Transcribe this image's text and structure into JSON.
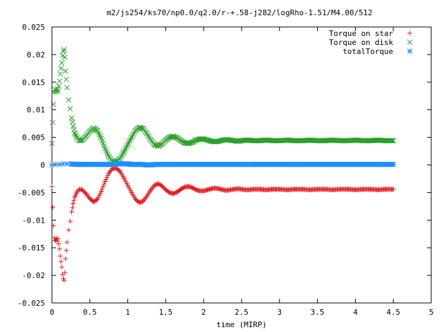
{
  "chart_data": {
    "type": "scatter",
    "title": "m2/js254/ks70/np0.0/q2.0/r-+.58-j282/logRho-1.51/M4.00/512",
    "xlabel": "time (MIRP)",
    "ylabel": "",
    "xlim": [
      0,
      5
    ],
    "ylim": [
      -0.025,
      0.025
    ],
    "x_ticks": [
      "0",
      "0.5",
      "1",
      "1.5",
      "2",
      "2.5",
      "3",
      "3.5",
      "4",
      "4.5",
      "5"
    ],
    "y_ticks": [
      "-0.025",
      "-0.02",
      "-0.015",
      "-0.01",
      "-0.005",
      "0",
      "0.005",
      "0.01",
      "0.015",
      "0.02",
      "0.025"
    ],
    "grid": false,
    "legend_position": "top-right",
    "series": [
      {
        "name": "Torque on star",
        "color": "#e41a1c",
        "marker": "plus",
        "x": [
          0.0,
          0.01,
          0.02,
          0.03,
          0.04,
          0.05,
          0.06,
          0.07,
          0.08,
          0.09,
          0.1,
          0.11,
          0.12,
          0.13,
          0.14,
          0.15,
          0.16,
          0.17,
          0.18,
          0.19,
          0.2,
          0.22,
          0.24,
          0.26,
          0.28,
          0.3,
          0.33,
          0.36,
          0.4,
          0.45,
          0.5,
          0.55,
          0.6,
          0.65,
          0.7,
          0.75,
          0.8,
          0.85,
          0.9,
          0.95,
          1.0,
          1.05,
          1.1,
          1.15,
          1.2,
          1.25,
          1.3,
          1.35,
          1.4,
          1.45,
          1.5,
          1.55,
          1.6,
          1.65,
          1.7,
          1.75,
          1.8,
          1.85,
          1.9,
          1.95,
          2.0,
          2.05,
          2.1,
          2.15,
          2.2,
          2.25,
          2.3,
          2.35,
          2.4,
          2.45,
          2.5,
          2.55,
          2.6,
          2.65,
          2.7,
          2.75,
          2.8,
          2.85,
          2.9,
          2.95,
          3.0,
          3.1,
          3.2,
          3.3,
          3.4,
          3.5,
          3.6,
          3.7,
          3.8,
          3.9,
          4.0,
          4.1,
          4.2,
          4.3,
          4.4,
          4.5
        ],
        "values": [
          -0.0039,
          -0.0077,
          -0.011,
          -0.0132,
          -0.0137,
          -0.0136,
          -0.0133,
          -0.0138,
          -0.0134,
          -0.0143,
          -0.0152,
          -0.0165,
          -0.0175,
          -0.0185,
          -0.0198,
          -0.0206,
          -0.0209,
          -0.0195,
          -0.017,
          -0.0155,
          -0.014,
          -0.0118,
          -0.0102,
          -0.0085,
          -0.007,
          -0.0058,
          -0.0049,
          -0.0044,
          -0.0045,
          -0.0052,
          -0.0061,
          -0.0067,
          -0.0062,
          -0.0048,
          -0.003,
          -0.0015,
          -0.0006,
          -0.0006,
          -0.0012,
          -0.0024,
          -0.0037,
          -0.005,
          -0.0062,
          -0.0068,
          -0.0066,
          -0.0057,
          -0.0046,
          -0.0037,
          -0.0034,
          -0.0038,
          -0.0045,
          -0.005,
          -0.0052,
          -0.0049,
          -0.0044,
          -0.004,
          -0.0039,
          -0.0041,
          -0.0045,
          -0.0047,
          -0.0047,
          -0.0045,
          -0.0043,
          -0.0042,
          -0.0043,
          -0.0045,
          -0.0046,
          -0.0045,
          -0.0044,
          -0.0043,
          -0.0044,
          -0.0045,
          -0.0045,
          -0.0044,
          -0.0044,
          -0.0044,
          -0.0045,
          -0.0045,
          -0.0044,
          -0.0044,
          -0.0044,
          -0.0045,
          -0.0044,
          -0.0044,
          -0.0045,
          -0.0044,
          -0.0044,
          -0.0045,
          -0.0044,
          -0.0044,
          -0.0045,
          -0.0044,
          -0.0044,
          -0.0045,
          -0.0044,
          -0.0044
        ]
      },
      {
        "name": "Torque on disk",
        "color": "#2ca02c",
        "marker": "cross",
        "x": [
          0.0,
          0.01,
          0.02,
          0.03,
          0.04,
          0.05,
          0.06,
          0.07,
          0.08,
          0.09,
          0.1,
          0.11,
          0.12,
          0.13,
          0.14,
          0.15,
          0.16,
          0.17,
          0.18,
          0.19,
          0.2,
          0.22,
          0.24,
          0.26,
          0.28,
          0.3,
          0.33,
          0.36,
          0.4,
          0.45,
          0.5,
          0.55,
          0.6,
          0.65,
          0.7,
          0.75,
          0.8,
          0.85,
          0.9,
          0.95,
          1.0,
          1.05,
          1.1,
          1.15,
          1.2,
          1.25,
          1.3,
          1.35,
          1.4,
          1.45,
          1.5,
          1.55,
          1.6,
          1.65,
          1.7,
          1.75,
          1.8,
          1.85,
          1.9,
          1.95,
          2.0,
          2.05,
          2.1,
          2.15,
          2.2,
          2.25,
          2.3,
          2.35,
          2.4,
          2.45,
          2.5,
          2.55,
          2.6,
          2.65,
          2.7,
          2.75,
          2.8,
          2.85,
          2.9,
          2.95,
          3.0,
          3.1,
          3.2,
          3.3,
          3.4,
          3.5,
          3.6,
          3.7,
          3.8,
          3.9,
          4.0,
          4.1,
          4.2,
          4.3,
          4.4,
          4.5
        ],
        "values": [
          0.0039,
          0.0077,
          0.011,
          0.0132,
          0.0137,
          0.0136,
          0.0133,
          0.0138,
          0.0134,
          0.0143,
          0.0152,
          0.0165,
          0.0175,
          0.0185,
          0.0198,
          0.0206,
          0.0209,
          0.0195,
          0.017,
          0.0155,
          0.014,
          0.0118,
          0.0102,
          0.0085,
          0.007,
          0.0058,
          0.0049,
          0.0044,
          0.0045,
          0.0052,
          0.0061,
          0.0067,
          0.0062,
          0.0048,
          0.003,
          0.0015,
          0.0006,
          0.0006,
          0.0012,
          0.0024,
          0.0037,
          0.005,
          0.0062,
          0.0068,
          0.0066,
          0.0057,
          0.0046,
          0.0037,
          0.0034,
          0.0038,
          0.0045,
          0.005,
          0.0052,
          0.0049,
          0.0044,
          0.004,
          0.0039,
          0.0041,
          0.0045,
          0.0047,
          0.0047,
          0.0045,
          0.0043,
          0.0042,
          0.0043,
          0.0045,
          0.0046,
          0.0045,
          0.0044,
          0.0043,
          0.0044,
          0.0045,
          0.0045,
          0.0044,
          0.0044,
          0.0044,
          0.0045,
          0.0045,
          0.0044,
          0.0044,
          0.0044,
          0.0045,
          0.0044,
          0.0044,
          0.0045,
          0.0044,
          0.0044,
          0.0045,
          0.0044,
          0.0044,
          0.0045,
          0.0044,
          0.0044,
          0.0045,
          0.0044,
          0.0044
        ]
      },
      {
        "name": "totalTorque",
        "color": "#1f8fff",
        "marker": "star",
        "x": [
          0.0,
          0.05,
          0.1,
          0.15,
          0.2,
          0.25,
          0.3,
          0.35,
          0.4,
          0.45,
          0.5,
          0.55,
          0.6,
          0.65,
          0.7,
          0.75,
          0.8,
          0.85,
          0.9,
          0.95,
          1.0,
          1.05,
          1.1,
          1.15,
          1.2,
          1.25,
          1.3,
          1.35,
          1.4,
          1.45,
          1.5,
          1.55,
          1.6,
          1.65,
          1.7,
          1.75,
          1.8,
          1.85,
          1.9,
          1.95,
          2.0,
          2.05,
          2.1,
          2.15,
          2.2,
          2.25,
          2.3,
          2.35,
          2.4,
          2.45,
          2.5,
          2.55,
          2.6,
          2.65,
          2.7,
          2.75,
          2.8,
          2.85,
          2.9,
          2.95,
          3.0,
          3.05,
          3.1,
          3.15,
          3.2,
          3.25,
          3.3,
          3.35,
          3.4,
          3.45,
          3.5,
          3.55,
          3.6,
          3.65,
          3.7,
          3.75,
          3.8,
          3.85,
          3.9,
          3.95,
          4.0,
          4.05,
          4.1,
          4.15,
          4.2,
          4.25,
          4.3,
          4.35,
          4.4,
          4.45,
          4.5
        ],
        "values": [
          0.0,
          0.0001,
          0.0001,
          0.0002,
          0.0002,
          0.0002,
          0.0001,
          0.0001,
          0.0001,
          0.0001,
          0.0001,
          0.0001,
          0.0001,
          0.0001,
          0.0001,
          0.0001,
          0.0001,
          0.0002,
          0.0002,
          0.0002,
          0.0002,
          0.0001,
          0.0001,
          0.0001,
          0.0001,
          0.0,
          0.0,
          0.0001,
          0.0001,
          0.0001,
          0.0001,
          0.0001,
          0.0001,
          0.0001,
          0.0001,
          0.0001,
          0.0001,
          0.0001,
          0.0001,
          0.0001,
          0.0001,
          0.0001,
          0.0001,
          0.0001,
          0.0001,
          0.0001,
          0.0001,
          0.0001,
          0.0001,
          0.0001,
          0.0001,
          0.0001,
          0.0001,
          0.0001,
          0.0001,
          0.0001,
          0.0001,
          0.0001,
          0.0001,
          0.0001,
          0.0001,
          0.0001,
          0.0001,
          0.0001,
          0.0001,
          0.0001,
          0.0001,
          0.0001,
          0.0001,
          0.0001,
          0.0001,
          0.0001,
          0.0001,
          0.0001,
          0.0001,
          0.0001,
          0.0001,
          0.0001,
          0.0001,
          0.0001,
          0.0001,
          0.0001,
          0.0001,
          0.0001,
          0.0001,
          0.0001,
          0.0001,
          0.0001,
          0.0001,
          0.0001,
          0.0001
        ]
      }
    ]
  }
}
